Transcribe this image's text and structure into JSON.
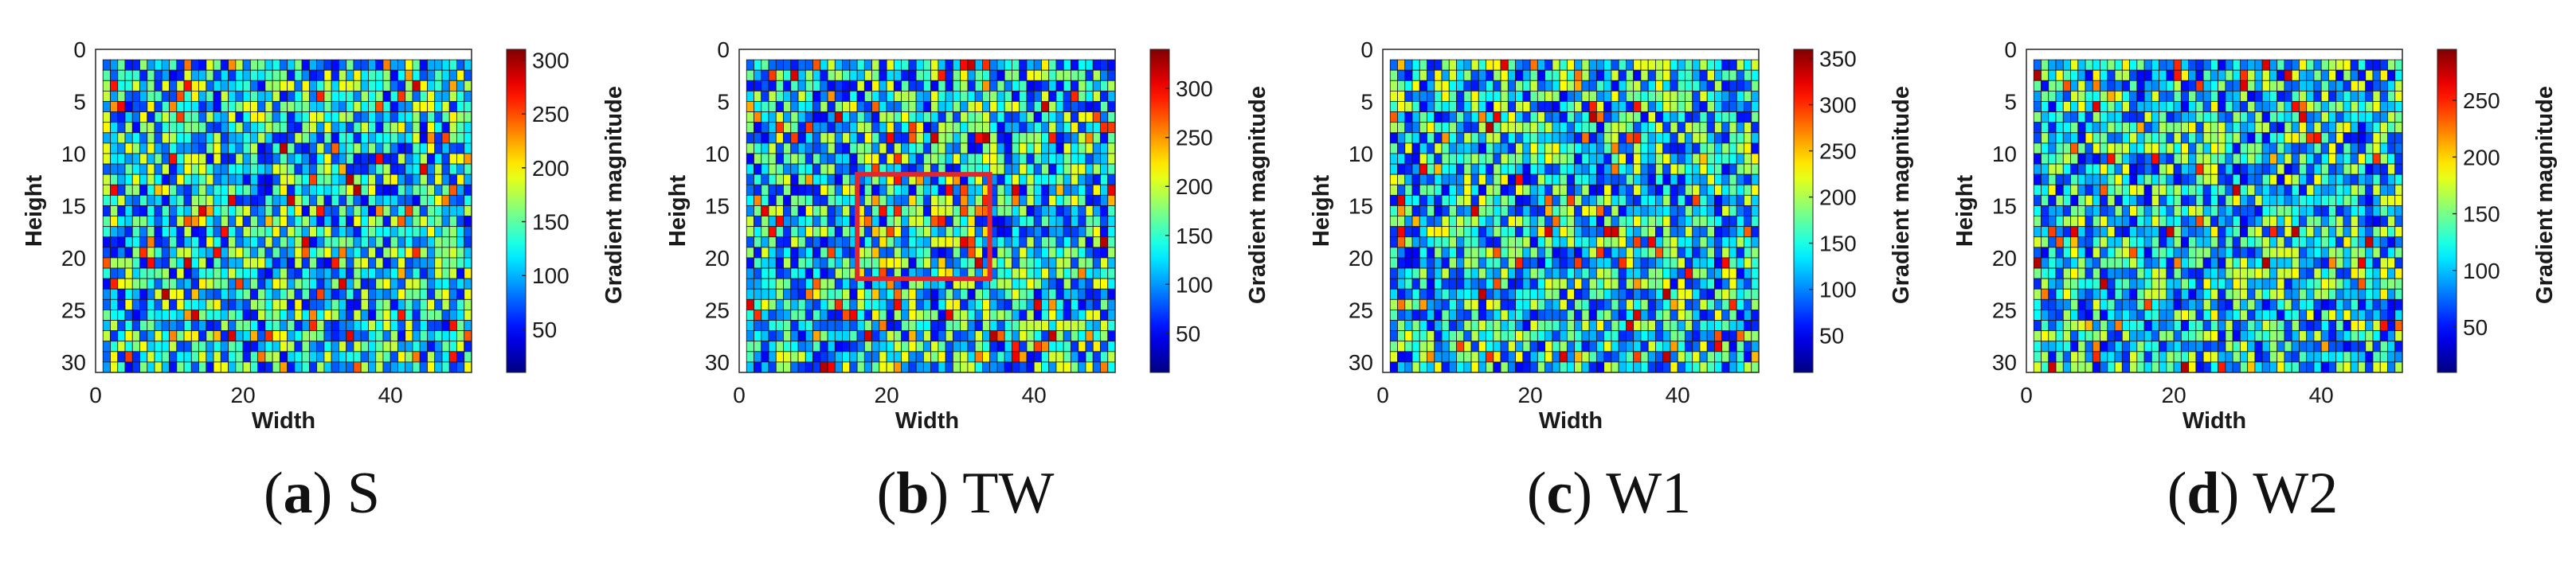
{
  "colors": {
    "grid": "#1a1a1a",
    "highlight": "#e0262e",
    "axis": "#262626"
  },
  "colormap": "jet",
  "chart_data": [
    {
      "type": "heatmap",
      "caption_letter": "a",
      "caption_open": "(",
      "caption_close": ")",
      "caption_name": "S",
      "xlabel": "Width",
      "ylabel": "Height",
      "colorbar_label": "Gradient magnitude",
      "x_ticks": [
        0,
        20,
        40
      ],
      "y_ticks": [
        0,
        5,
        10,
        15,
        20,
        25,
        30
      ],
      "xlim": [
        0,
        51
      ],
      "ylim": [
        0,
        31
      ],
      "grid_cols": 50,
      "grid_rows": 30,
      "clim": [
        10,
        310
      ],
      "colorbar_ticks": [
        50,
        100,
        150,
        200,
        250,
        300
      ],
      "seed": 11,
      "highlight": null
    },
    {
      "type": "heatmap",
      "caption_letter": "b",
      "caption_open": "(",
      "caption_close": ")",
      "caption_name": "TW",
      "xlabel": "Width",
      "ylabel": "Height",
      "colorbar_label": "Gradient magnitude",
      "x_ticks": [
        0,
        20,
        40
      ],
      "y_ticks": [
        0,
        5,
        10,
        15,
        20,
        25,
        30
      ],
      "xlim": [
        0,
        51
      ],
      "ylim": [
        0,
        31
      ],
      "grid_cols": 50,
      "grid_rows": 30,
      "clim": [
        10,
        340
      ],
      "colorbar_ticks": [
        50,
        100,
        150,
        200,
        250,
        300
      ],
      "seed": 23,
      "highlight": {
        "x0": 16,
        "x1": 34,
        "y0": 12,
        "y1": 22
      }
    },
    {
      "type": "heatmap",
      "caption_letter": "c",
      "caption_open": "(",
      "caption_close": ")",
      "caption_name": "W1",
      "xlabel": "Width",
      "ylabel": "Height",
      "colorbar_label": "Gradient magnitude",
      "x_ticks": [
        0,
        20,
        40
      ],
      "y_ticks": [
        0,
        5,
        10,
        15,
        20,
        25,
        30
      ],
      "xlim": [
        0,
        51
      ],
      "ylim": [
        0,
        31
      ],
      "grid_cols": 50,
      "grid_rows": 30,
      "clim": [
        10,
        360
      ],
      "colorbar_ticks": [
        50,
        100,
        150,
        200,
        250,
        300,
        350
      ],
      "seed": 37,
      "highlight": null
    },
    {
      "type": "heatmap",
      "caption_letter": "d",
      "caption_open": "(",
      "caption_close": ")",
      "caption_name": "W2",
      "xlabel": "Width",
      "ylabel": "Height",
      "colorbar_label": "Gradient magnitude",
      "x_ticks": [
        0,
        20,
        40
      ],
      "y_ticks": [
        0,
        5,
        10,
        15,
        20,
        25,
        30
      ],
      "xlim": [
        0,
        51
      ],
      "ylim": [
        0,
        31
      ],
      "grid_cols": 50,
      "grid_rows": 30,
      "clim": [
        10,
        295
      ],
      "colorbar_ticks": [
        50,
        100,
        150,
        200,
        250
      ],
      "seed": 51,
      "highlight": null
    }
  ]
}
